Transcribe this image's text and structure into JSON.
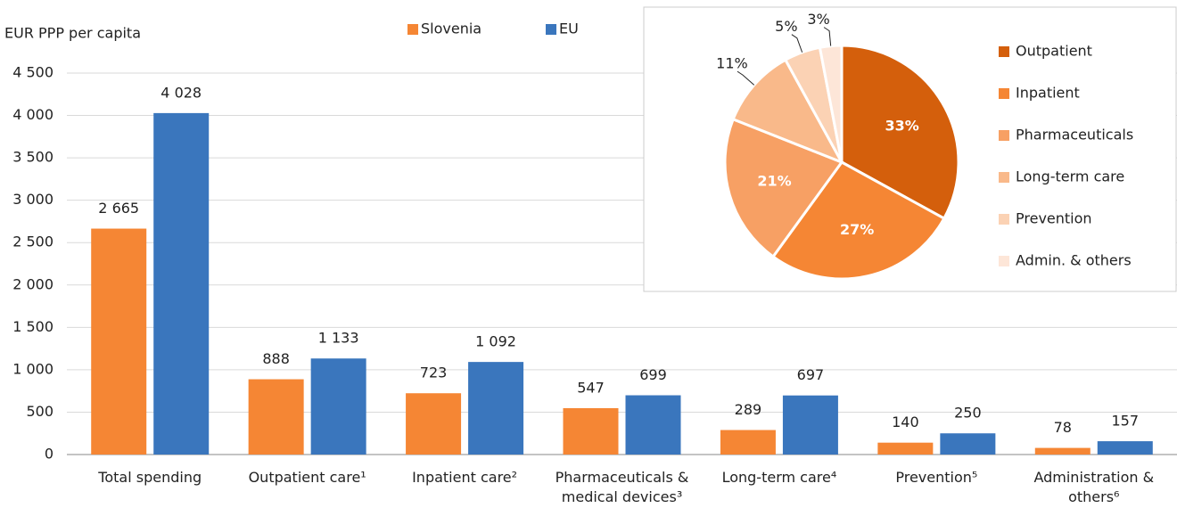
{
  "chart_data": [
    {
      "type": "bar",
      "y_label": "EUR PPP per capita",
      "categories": [
        "Total spending",
        "Outpatient care¹",
        "Inpatient care²",
        "Pharmaceuticals & medical devices³",
        "Long-term care⁴",
        "Prevention⁵",
        "Administration & others⁶"
      ],
      "series": [
        {
          "name": "Slovenia",
          "color": "#f58634",
          "values": [
            2665,
            888,
            723,
            547,
            289,
            140,
            78
          ],
          "value_labels": [
            "2 665",
            "888",
            "723",
            "547",
            "289",
            "140",
            "78"
          ]
        },
        {
          "name": "EU",
          "color": "#3a76bd",
          "values": [
            4028,
            1133,
            1092,
            699,
            697,
            250,
            157
          ],
          "value_labels": [
            "4 028",
            "1 133",
            "1 092",
            "699",
            "697",
            "250",
            "157"
          ]
        }
      ],
      "ylim": [
        0,
        4500
      ],
      "yticks": [
        0,
        500,
        {
          "value": 1000,
          "label": "1 000"
        },
        {
          "value": 1500,
          "label": "1 500"
        },
        {
          "value": 2000,
          "label": "2 000"
        },
        {
          "value": 2500,
          "label": "2 500"
        },
        {
          "value": 3000,
          "label": "3 000"
        },
        {
          "value": 3500,
          "label": "3 500"
        },
        {
          "value": 4000,
          "label": "4 000"
        },
        {
          "value": 4500,
          "label": "4 500"
        }
      ],
      "grid": true
    },
    {
      "type": "pie",
      "categories": [
        "Outpatient",
        "Inpatient",
        "Pharmaceuticals",
        "Long-term care",
        "Prevention",
        "Admin. & others"
      ],
      "values": [
        33,
        27,
        21,
        11,
        5,
        3
      ],
      "value_labels": [
        "33%",
        "27%",
        "21%",
        "11%",
        "5%",
        "3%"
      ],
      "colors": [
        "#d45f0c",
        "#f58634",
        "#f7a064",
        "#f9b98a",
        "#fbd2b4",
        "#fde6d8"
      ]
    }
  ]
}
